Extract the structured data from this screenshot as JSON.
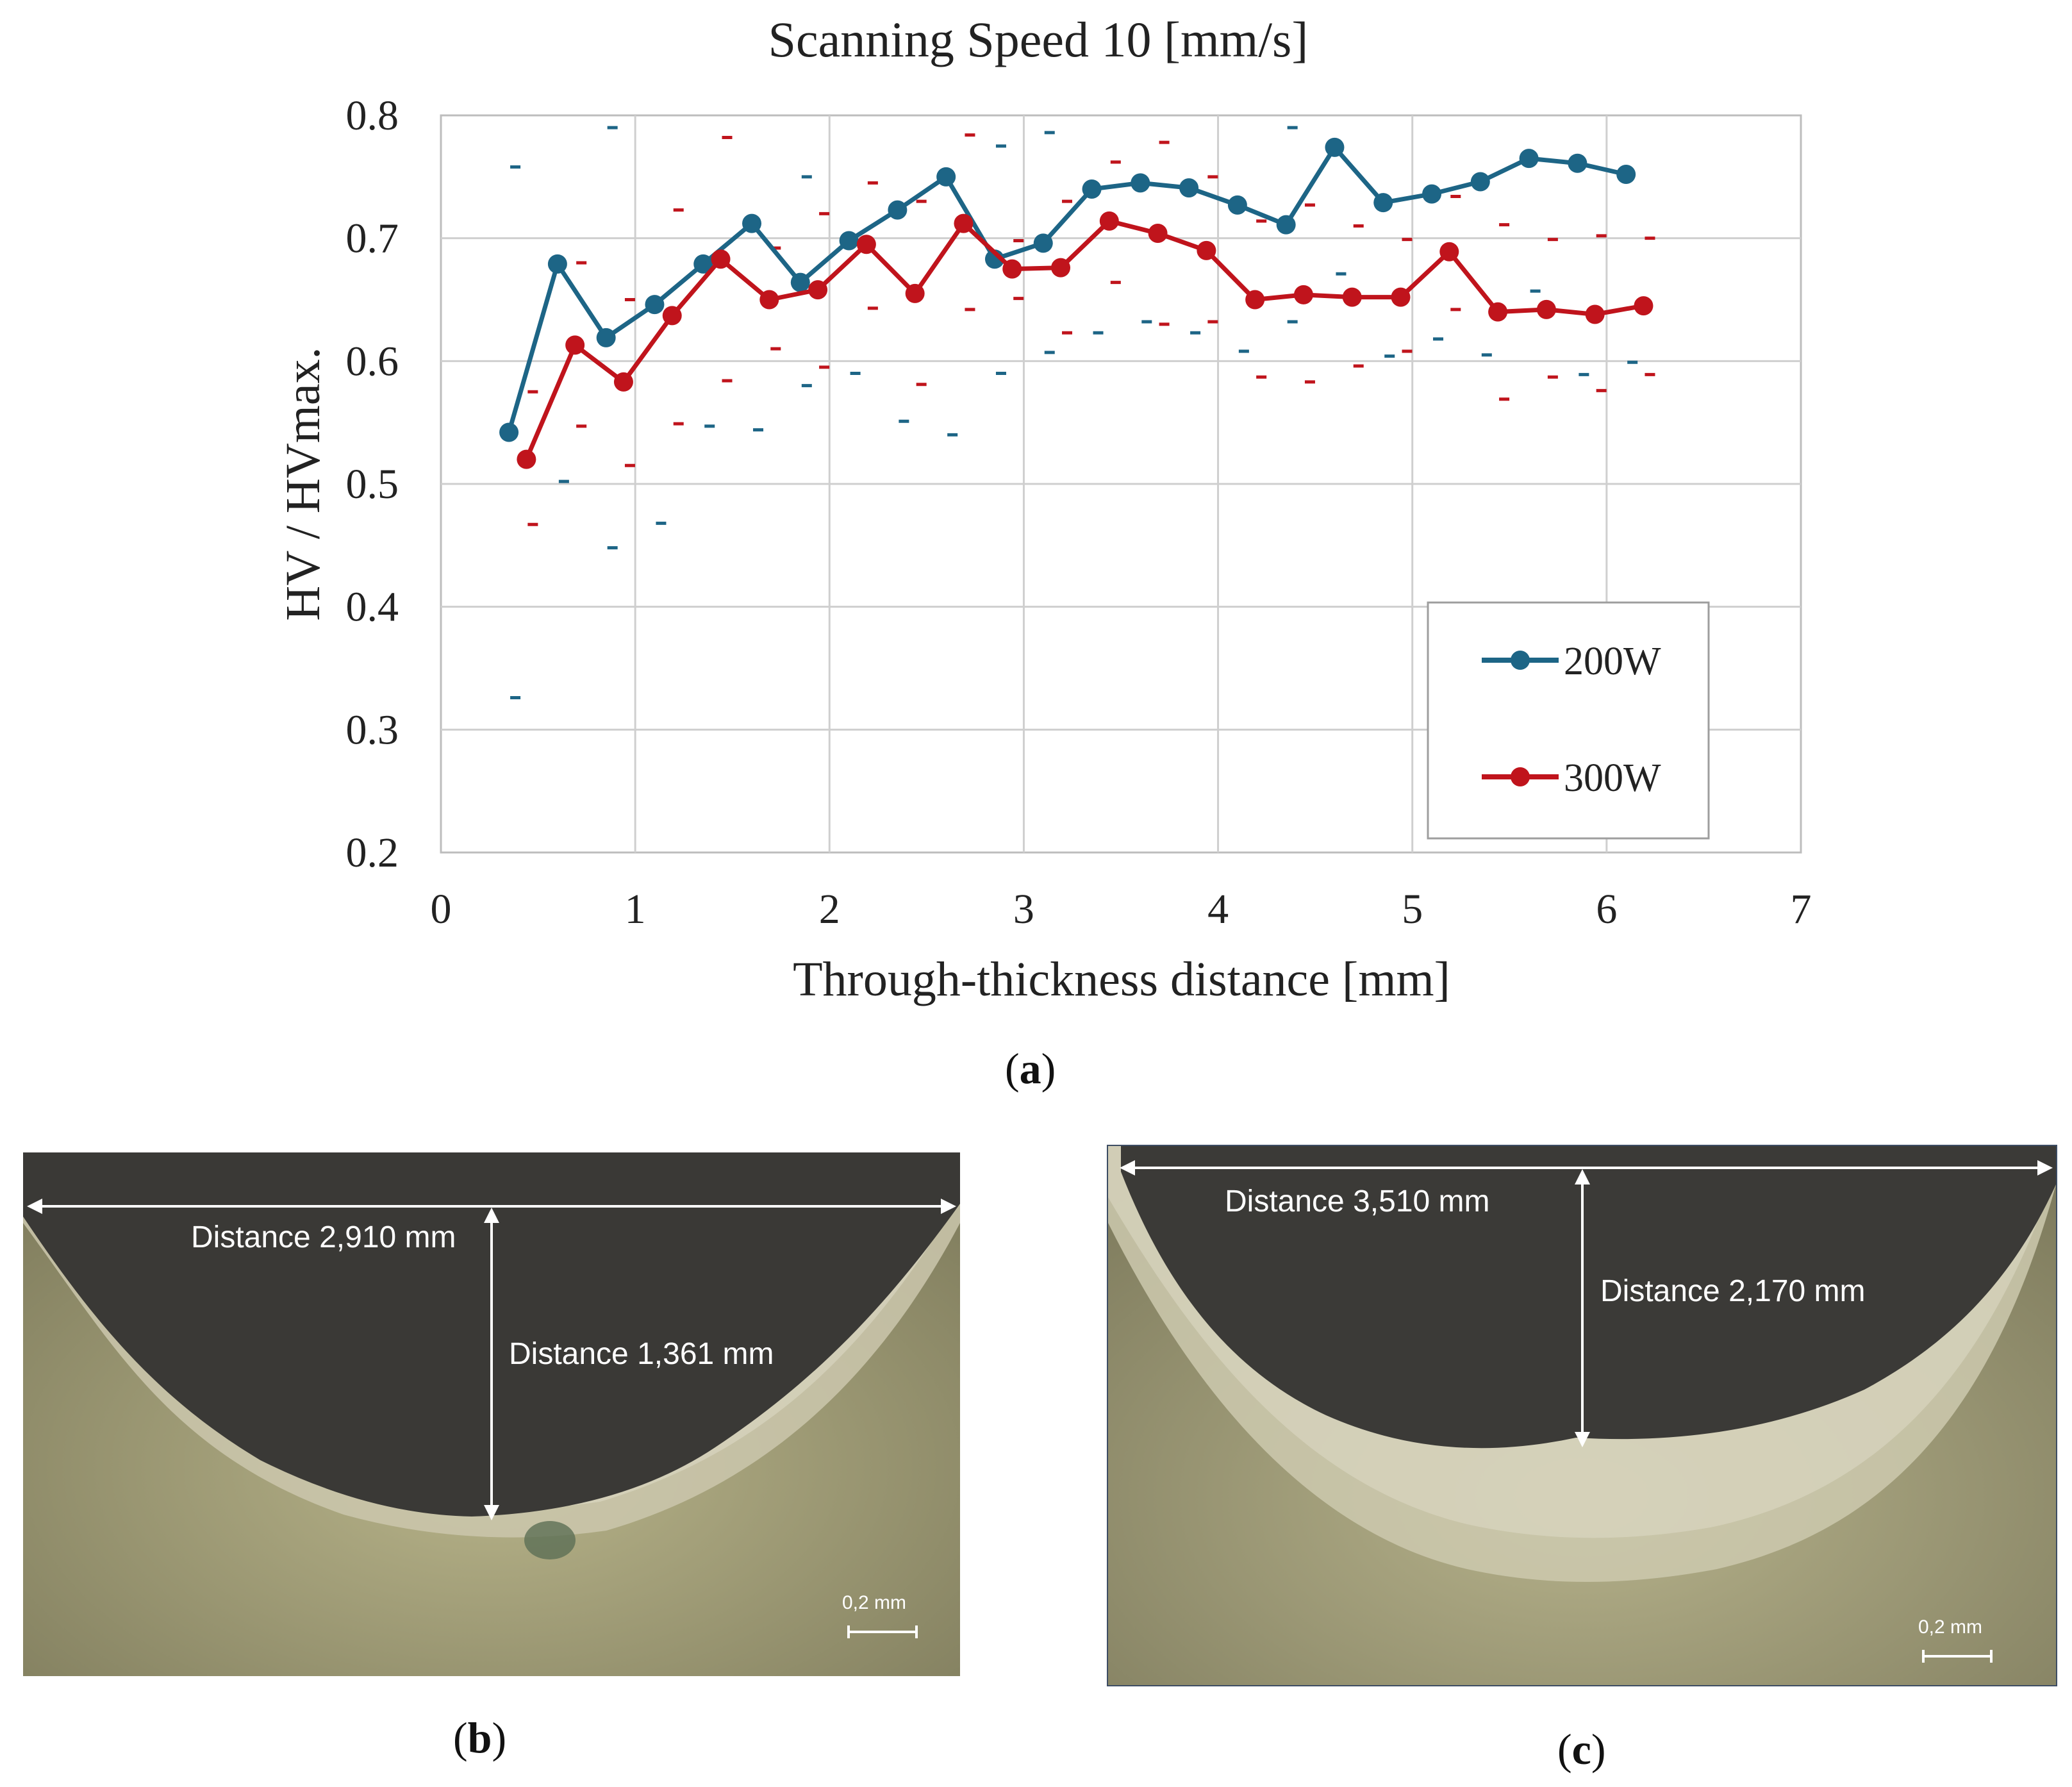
{
  "chart_data": {
    "type": "line",
    "title": "Scanning Speed 10 [mm/s]",
    "xlabel": "Through-thickness distance [mm]",
    "ylabel": "HV / HVmax.",
    "xlim": [
      0,
      7
    ],
    "ylim": [
      0.2,
      0.8
    ],
    "xticks": [
      "0",
      "1",
      "2",
      "3",
      "4",
      "5",
      "6",
      "7"
    ],
    "yticks": [
      "0.2",
      "0.3",
      "0.4",
      "0.5",
      "0.6",
      "0.7",
      "0.8"
    ],
    "grid": true,
    "legend_position": "bottom-right",
    "series": [
      {
        "name": "200W",
        "color": "#1d6586",
        "x": [
          0.35,
          0.6,
          0.85,
          1.1,
          1.35,
          1.6,
          1.85,
          2.1,
          2.35,
          2.6,
          2.85,
          3.1,
          3.35,
          3.6,
          3.85,
          4.1,
          4.35,
          4.6,
          4.85,
          5.1,
          5.35,
          5.6,
          5.85,
          6.1
        ],
        "y": [
          0.542,
          0.679,
          0.619,
          0.646,
          0.679,
          0.712,
          0.664,
          0.698,
          0.723,
          0.75,
          0.683,
          0.696,
          0.74,
          0.745,
          0.741,
          0.727,
          0.711,
          0.774,
          0.729,
          0.736,
          0.746,
          0.765,
          0.761,
          0.752
        ],
        "err_hi": [
          0.758,
          null,
          0.79,
          null,
          null,
          null,
          0.75,
          null,
          null,
          null,
          0.775,
          0.786,
          null,
          null,
          null,
          null,
          0.79,
          null,
          null,
          null,
          null,
          null,
          null,
          null
        ],
        "err_lo": [
          0.326,
          0.502,
          0.448,
          0.468,
          0.547,
          0.544,
          0.58,
          0.59,
          0.551,
          0.54,
          0.59,
          0.607,
          0.623,
          0.632,
          0.623,
          0.608,
          0.632,
          0.671,
          0.604,
          0.618,
          0.605,
          0.657,
          0.589,
          0.599
        ]
      },
      {
        "name": "300W",
        "color": "#c0141c",
        "x": [
          0.44,
          0.69,
          0.94,
          1.19,
          1.44,
          1.69,
          1.94,
          2.19,
          2.44,
          2.69,
          2.94,
          3.19,
          3.44,
          3.69,
          3.94,
          4.19,
          4.44,
          4.69,
          4.94,
          5.19,
          5.44,
          5.69,
          5.94,
          6.19
        ],
        "y": [
          0.52,
          0.613,
          0.583,
          0.637,
          0.683,
          0.65,
          0.658,
          0.695,
          0.655,
          0.712,
          0.675,
          0.676,
          0.714,
          0.704,
          0.69,
          0.65,
          0.654,
          0.652,
          0.652,
          0.689,
          0.64,
          0.642,
          0.638,
          0.645
        ],
        "err_hi": [
          0.575,
          0.68,
          0.65,
          0.723,
          0.782,
          0.692,
          0.72,
          0.745,
          0.73,
          0.784,
          0.698,
          0.73,
          0.762,
          0.778,
          0.75,
          0.714,
          0.727,
          0.71,
          0.699,
          0.734,
          0.711,
          0.699,
          0.702,
          0.7
        ],
        "err_lo": [
          0.467,
          0.547,
          0.515,
          0.549,
          0.584,
          0.61,
          0.595,
          0.643,
          0.581,
          0.642,
          0.651,
          0.623,
          0.664,
          0.63,
          0.632,
          0.587,
          0.583,
          0.596,
          0.608,
          0.642,
          0.569,
          0.587,
          0.576,
          0.589
        ]
      }
    ]
  },
  "captions": {
    "a": "a",
    "b": "b",
    "c": "c"
  },
  "micrograph_b": {
    "width_label": "Distance 2,910 mm",
    "depth_label": "Distance 1,361 mm",
    "scale_label": "0,2 mm"
  },
  "micrograph_c": {
    "width_label": "Distance 3,510 mm",
    "depth_label": "Distance 2,170 mm",
    "scale_label": "0,2 mm"
  }
}
